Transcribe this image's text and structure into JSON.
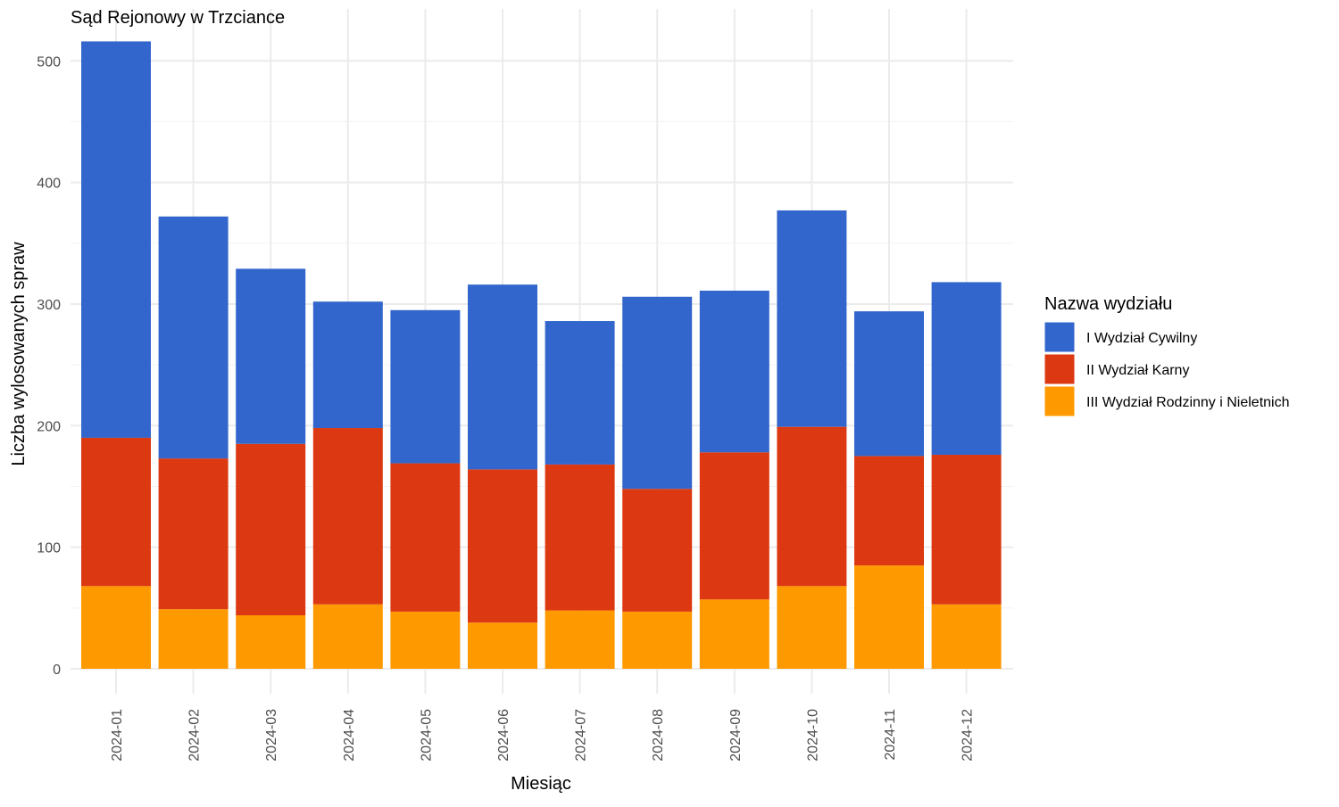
{
  "chart_data": {
    "type": "bar",
    "stacked": true,
    "title": "Sąd Rejonowy w Trzciance",
    "xlabel": "Miesiąc",
    "ylabel": "Liczba wylosowanych spraw",
    "ylim": [
      0,
      530
    ],
    "yticks": [
      0,
      100,
      200,
      300,
      400,
      500
    ],
    "grid": true,
    "legend_position": "right",
    "legend_title": "Nazwa wydziału",
    "categories": [
      "2024-01",
      "2024-02",
      "2024-03",
      "2024-04",
      "2024-05",
      "2024-06",
      "2024-07",
      "2024-08",
      "2024-09",
      "2024-10",
      "2024-11",
      "2024-12"
    ],
    "series": [
      {
        "name": "III Wydział Rodzinny i Nieletnich",
        "color": "#FF9900",
        "values": [
          68,
          49,
          44,
          53,
          47,
          38,
          48,
          47,
          57,
          68,
          85,
          53
        ]
      },
      {
        "name": "II Wydział Karny",
        "color": "#DC3912",
        "values": [
          122,
          124,
          141,
          145,
          122,
          126,
          120,
          101,
          121,
          131,
          90,
          123
        ]
      },
      {
        "name": "I Wydział Cywilny",
        "color": "#3366CC",
        "values": [
          326,
          199,
          144,
          104,
          126,
          152,
          118,
          158,
          133,
          178,
          119,
          142
        ]
      }
    ],
    "legend_order": [
      "I Wydział Cywilny",
      "II Wydział Karny",
      "III Wydział Rodzinny i Nieletnich"
    ]
  }
}
